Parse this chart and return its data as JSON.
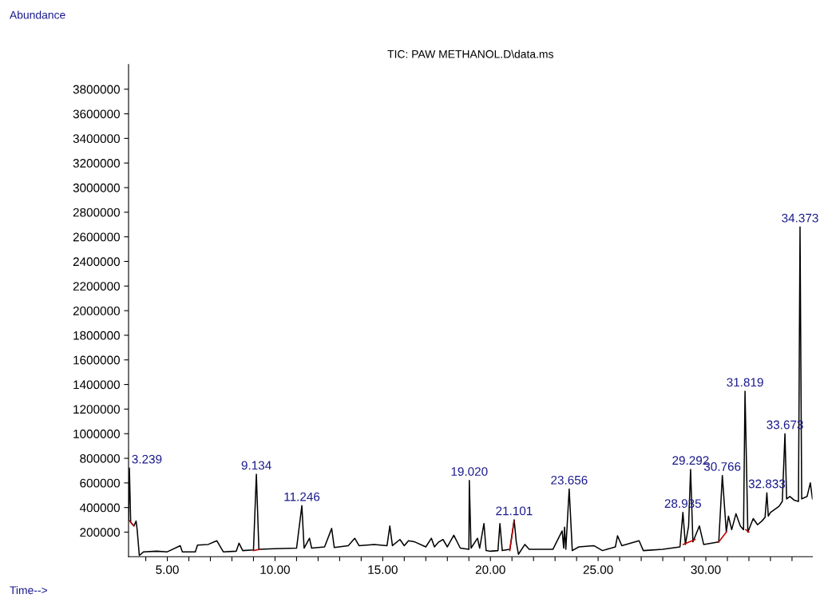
{
  "chart_data": {
    "type": "line",
    "title": "TIC: PAW METHANOL.D\\data.ms",
    "xlabel": "Time-->",
    "ylabel": "Abundance",
    "xlim": [
      3.2,
      34.95
    ],
    "ylim": [
      0,
      4000000
    ],
    "xticks": [
      {
        "value": 4,
        "label": null
      },
      {
        "value": 5,
        "label": "5.00"
      },
      {
        "value": 6,
        "label": null
      },
      {
        "value": 7,
        "label": null
      },
      {
        "value": 8,
        "label": null
      },
      {
        "value": 9,
        "label": null
      },
      {
        "value": 10,
        "label": "10.00"
      },
      {
        "value": 11,
        "label": null
      },
      {
        "value": 12,
        "label": null
      },
      {
        "value": 13,
        "label": null
      },
      {
        "value": 14,
        "label": null
      },
      {
        "value": 15,
        "label": "15.00"
      },
      {
        "value": 16,
        "label": null
      },
      {
        "value": 17,
        "label": null
      },
      {
        "value": 18,
        "label": null
      },
      {
        "value": 19,
        "label": null
      },
      {
        "value": 20,
        "label": "20.00"
      },
      {
        "value": 21,
        "label": null
      },
      {
        "value": 22,
        "label": null
      },
      {
        "value": 23,
        "label": null
      },
      {
        "value": 24,
        "label": null
      },
      {
        "value": 25,
        "label": "25.00"
      },
      {
        "value": 26,
        "label": null
      },
      {
        "value": 27,
        "label": null
      },
      {
        "value": 28,
        "label": null
      },
      {
        "value": 29,
        "label": null
      },
      {
        "value": 30,
        "label": "30.00"
      },
      {
        "value": 31,
        "label": null
      },
      {
        "value": 32,
        "label": null
      },
      {
        "value": 33,
        "label": null
      },
      {
        "value": 34,
        "label": null
      }
    ],
    "yticks": [
      200000,
      400000,
      600000,
      800000,
      1000000,
      1200000,
      1400000,
      1600000,
      1800000,
      2000000,
      2200000,
      2400000,
      2600000,
      2800000,
      3000000,
      3200000,
      3400000,
      3600000,
      3800000
    ],
    "grid": false,
    "legend": false,
    "series": [
      {
        "color": "#000000",
        "x": [
          3.2,
          3.239,
          3.3,
          3.45,
          3.55,
          3.6,
          3.7,
          3.9,
          4.5,
          5.0,
          5.6,
          5.7,
          6.3,
          6.4,
          6.9,
          7.3,
          7.6,
          8.2,
          8.33,
          8.5,
          9.0,
          9.134,
          9.25,
          10.0,
          11.0,
          11.246,
          11.35,
          11.6,
          11.7,
          12.3,
          12.63,
          12.75,
          13.4,
          13.7,
          13.9,
          14.6,
          15.2,
          15.33,
          15.45,
          15.8,
          16.0,
          16.2,
          16.5,
          17.0,
          17.26,
          17.4,
          17.6,
          17.8,
          18.0,
          18.3,
          18.6,
          19.0,
          19.02,
          19.1,
          19.4,
          19.5,
          19.7,
          19.8,
          20.0,
          20.35,
          20.44,
          20.55,
          20.9,
          21.101,
          21.2,
          21.3,
          21.6,
          21.8,
          22.9,
          23.33,
          23.4,
          23.44,
          23.5,
          23.656,
          23.8,
          24.1,
          24.8,
          25.2,
          25.8,
          25.9,
          26.1,
          26.9,
          27.1,
          28.0,
          28.8,
          28.935,
          29.05,
          29.2,
          29.292,
          29.4,
          29.7,
          29.9,
          30.6,
          30.766,
          30.95,
          31.05,
          31.2,
          31.4,
          31.6,
          31.75,
          31.819,
          31.95,
          32.2,
          32.4,
          32.6,
          32.75,
          32.833,
          32.9,
          33.0,
          33.4,
          33.55,
          33.673,
          33.75,
          33.9,
          34.1,
          34.3,
          34.373,
          34.45,
          34.7,
          34.85,
          34.95
        ],
        "values": [
          300000,
          720000,
          280000,
          250000,
          290000,
          220000,
          10000,
          40000,
          45000,
          40000,
          90000,
          40000,
          40000,
          95000,
          100000,
          130000,
          40000,
          45000,
          110000,
          50000,
          55000,
          670000,
          60000,
          65000,
          70000,
          415000,
          70000,
          150000,
          70000,
          80000,
          230000,
          75000,
          90000,
          150000,
          90000,
          100000,
          90000,
          250000,
          90000,
          140000,
          90000,
          130000,
          120000,
          80000,
          150000,
          80000,
          120000,
          140000,
          80000,
          175000,
          70000,
          60000,
          620000,
          70000,
          150000,
          70000,
          270000,
          50000,
          45000,
          50000,
          270000,
          50000,
          60000,
          300000,
          120000,
          20000,
          100000,
          60000,
          60000,
          210000,
          70000,
          240000,
          60000,
          550000,
          50000,
          80000,
          90000,
          50000,
          80000,
          170000,
          90000,
          130000,
          50000,
          60000,
          80000,
          360000,
          100000,
          250000,
          710000,
          120000,
          250000,
          100000,
          120000,
          660000,
          200000,
          330000,
          220000,
          350000,
          250000,
          220000,
          1345000,
          200000,
          310000,
          260000,
          290000,
          320000,
          520000,
          330000,
          360000,
          410000,
          450000,
          1000000,
          470000,
          490000,
          460000,
          450000,
          2680000,
          470000,
          490000,
          600000,
          470000
        ]
      },
      {
        "color": "#c00000",
        "x": [
          3.2,
          3.45,
          3.46,
          9.0,
          9.3,
          9.31,
          20.9,
          21.1,
          21.11,
          28.95,
          29.5,
          29.51,
          30.6,
          30.95,
          30.96,
          31.85,
          32.0
        ],
        "values": [
          300000,
          250000,
          null,
          50000,
          60000,
          null,
          50000,
          290000,
          null,
          100000,
          140000,
          null,
          120000,
          200000,
          null,
          220000,
          200000
        ]
      }
    ],
    "annotations": [
      {
        "text": "3.239",
        "x": 3.239,
        "y": 720000
      },
      {
        "text": "9.134",
        "x": 9.134,
        "y": 670000
      },
      {
        "text": "11.246",
        "x": 11.246,
        "y": 415000
      },
      {
        "text": "19.020",
        "x": 19.02,
        "y": 620000
      },
      {
        "text": "21.101",
        "x": 21.101,
        "y": 300000
      },
      {
        "text": "23.656",
        "x": 23.656,
        "y": 550000
      },
      {
        "text": "28.935",
        "x": 28.935,
        "y": 360000
      },
      {
        "text": "29.292",
        "x": 29.292,
        "y": 710000
      },
      {
        "text": "30.766",
        "x": 30.766,
        "y": 660000
      },
      {
        "text": "31.819",
        "x": 31.819,
        "y": 1345000
      },
      {
        "text": "32.833",
        "x": 32.833,
        "y": 520000
      },
      {
        "text": "33.673",
        "x": 33.673,
        "y": 1000000
      },
      {
        "text": "34.373",
        "x": 34.373,
        "y": 2680000
      }
    ]
  }
}
